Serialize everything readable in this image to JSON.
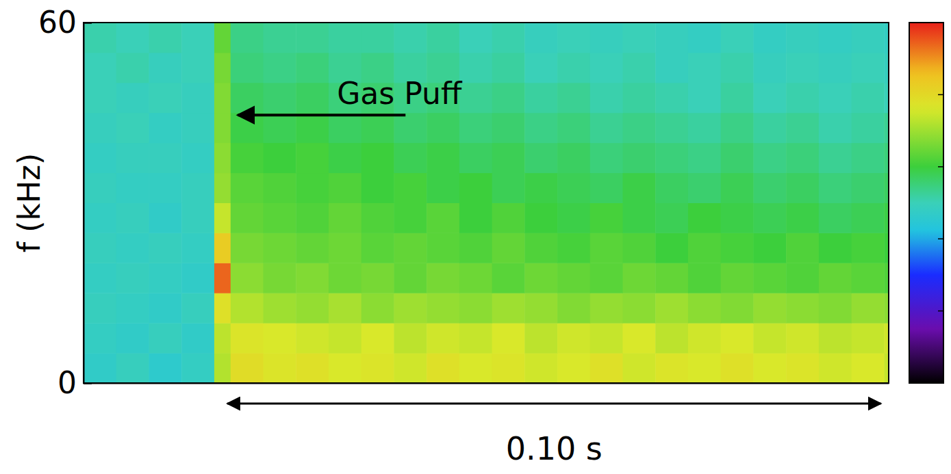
{
  "chart_data": {
    "type": "heatmap",
    "ylabel": "f (kHz)",
    "xlim": [
      0,
      0.1232
    ],
    "ylim": [
      0,
      60
    ],
    "yticks": [
      0,
      60
    ],
    "tick_labels": "y",
    "x": [
      0,
      0.005,
      0.01,
      0.015,
      0.02,
      0.0225,
      0.0275,
      0.0325,
      0.0375,
      0.0425,
      0.0475,
      0.0525,
      0.0575,
      0.0625,
      0.0675,
      0.0725,
      0.0775,
      0.0825,
      0.0875,
      0.0925,
      0.0975,
      0.1025,
      0.1075,
      0.1125,
      0.1175,
      0.1225,
      0.1232
    ],
    "y": [
      0,
      5,
      10,
      15,
      20,
      25,
      30,
      35,
      40,
      45,
      50,
      55,
      60
    ],
    "z": [
      [
        4.7,
        4.9,
        4.6,
        4.8,
        7.2,
        7.9,
        7.7,
        7.8,
        7.6,
        7.7,
        7.5,
        7.8,
        7.6,
        7.7,
        7.5,
        7.6,
        7.8,
        7.5,
        7.7,
        7.6,
        7.8,
        7.6,
        7.7,
        7.5,
        7.6,
        7.4
      ],
      [
        4.8,
        4.7,
        4.9,
        4.7,
        7.3,
        7.7,
        7.6,
        7.5,
        7.4,
        7.6,
        7.3,
        7.5,
        7.4,
        7.6,
        7.3,
        7.5,
        7.4,
        7.6,
        7.3,
        7.5,
        7.6,
        7.4,
        7.5,
        7.3,
        7.4,
        7.5
      ],
      [
        4.9,
        4.8,
        4.7,
        4.9,
        7.8,
        7.2,
        7.0,
        6.9,
        7.1,
        6.8,
        7.0,
        6.9,
        6.8,
        7.0,
        6.9,
        6.7,
        6.9,
        6.8,
        7.0,
        6.8,
        6.7,
        6.9,
        6.8,
        6.7,
        6.9,
        6.8
      ],
      [
        4.8,
        4.9,
        4.8,
        4.7,
        9.4,
        6.8,
        6.6,
        6.7,
        6.5,
        6.6,
        6.4,
        6.6,
        6.5,
        6.3,
        6.5,
        6.4,
        6.3,
        6.5,
        6.4,
        6.2,
        6.4,
        6.3,
        6.2,
        6.4,
        6.3,
        6.2
      ],
      [
        4.9,
        4.8,
        4.9,
        4.8,
        8.3,
        6.6,
        6.5,
        6.4,
        6.5,
        6.3,
        6.4,
        6.3,
        6.2,
        6.4,
        6.2,
        6.1,
        6.3,
        6.2,
        6.0,
        6.2,
        6.1,
        6.0,
        6.2,
        6.0,
        6.1,
        6.0
      ],
      [
        4.8,
        4.9,
        4.7,
        4.9,
        7.4,
        6.4,
        6.3,
        6.2,
        6.4,
        6.2,
        6.1,
        6.3,
        6.0,
        6.2,
        6.0,
        5.9,
        6.1,
        5.9,
        5.8,
        6.0,
        5.9,
        5.8,
        5.9,
        5.7,
        5.8,
        5.9
      ],
      [
        4.9,
        4.8,
        4.8,
        4.9,
        6.9,
        6.3,
        6.2,
        6.1,
        6.2,
        6.0,
        6.1,
        5.9,
        6.0,
        5.8,
        5.9,
        5.8,
        5.7,
        5.9,
        5.7,
        5.6,
        5.8,
        5.6,
        5.7,
        5.5,
        5.6,
        5.7
      ],
      [
        4.8,
        4.9,
        4.9,
        4.8,
        6.8,
        6.1,
        6.0,
        6.1,
        5.9,
        6.0,
        5.8,
        5.9,
        5.7,
        5.8,
        5.6,
        5.7,
        5.5,
        5.6,
        5.5,
        5.4,
        5.6,
        5.4,
        5.5,
        5.3,
        5.4,
        5.5
      ],
      [
        4.9,
        5.0,
        4.8,
        4.9,
        6.7,
        5.9,
        5.8,
        5.9,
        5.7,
        5.8,
        5.6,
        5.7,
        5.5,
        5.6,
        5.4,
        5.5,
        5.3,
        5.4,
        5.3,
        5.2,
        5.4,
        5.2,
        5.3,
        5.1,
        5.2,
        5.3
      ],
      [
        5.0,
        4.9,
        5.0,
        4.9,
        6.7,
        5.7,
        5.6,
        5.7,
        5.5,
        5.6,
        5.4,
        5.5,
        5.3,
        5.4,
        5.2,
        5.3,
        5.1,
        5.2,
        5.1,
        5.0,
        5.2,
        5.0,
        5.1,
        5.0,
        5.1,
        5.0
      ],
      [
        5.0,
        5.1,
        4.9,
        5.0,
        6.6,
        5.5,
        5.4,
        5.5,
        5.3,
        5.4,
        5.2,
        5.3,
        5.1,
        5.2,
        5.0,
        5.1,
        5.0,
        5.1,
        4.9,
        5.0,
        5.1,
        4.9,
        5.0,
        4.9,
        5.0,
        4.9
      ],
      [
        5.1,
        5.0,
        5.1,
        5.0,
        6.4,
        5.4,
        5.3,
        5.3,
        5.2,
        5.2,
        5.1,
        5.2,
        5.0,
        5.1,
        4.9,
        5.0,
        4.9,
        5.0,
        4.9,
        4.8,
        5.0,
        4.8,
        4.9,
        4.8,
        4.9,
        4.8
      ]
    ],
    "colorbar": {
      "range": [
        0,
        10
      ],
      "ticks": [
        0,
        2,
        4,
        6,
        8,
        10
      ]
    },
    "annotations": [
      {
        "text": "Gas Puff",
        "x": 0.0236,
        "y": 44.6
      }
    ],
    "span": {
      "text": "0.10 s",
      "x0": 0.022,
      "x1": 0.122
    }
  }
}
